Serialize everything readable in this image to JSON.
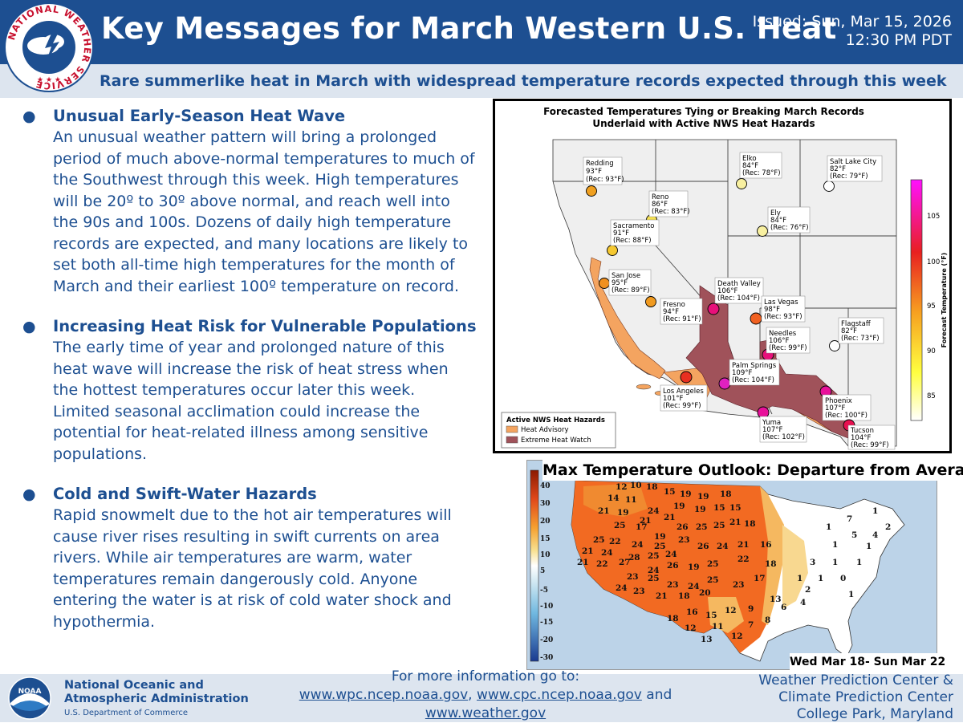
{
  "header": {
    "title": "Key Messages for March Western U.S. Heat",
    "issued_line1": "Issued: Sun, Mar 15, 2026",
    "issued_line2": "12:30 PM PDT",
    "subtitle": "Rare summerlike heat in March with widespread temperature records expected through this week",
    "logo_text": "NATIONAL WEATHER SERVICE"
  },
  "messages": [
    {
      "title": "Unusual Early-Season Heat Wave",
      "body": "An unusual weather pattern will bring a prolonged period of much above-normal temperatures to much of the Southwest through this week. High temperatures will be 20º to 30º above normal, and reach well into the 90s and 100s. Dozens of daily high temperature records are expected, and many locations are likely to set both all-time high temperatures for the month of March and their earliest 100º temperature on record."
    },
    {
      "title": "Increasing Heat Risk for Vulnerable Populations",
      "body": "The early time of year and prolonged nature of this heat wave will increase the risk of heat stress when the hottest temperatures occur later this week. Limited seasonal acclimation could increase the potential for heat-related illness among sensitive populations."
    },
    {
      "title": "Cold and Swift-Water Hazards",
      "body": "Rapid snowmelt due to the hot air temperatures will cause river rises resulting in swift currents on area rivers. While air temperatures are warm, water temperatures remain dangerously cold. Anyone entering the water is at risk of cold water shock and hypothermia."
    }
  ],
  "record_map": {
    "title_line1": "Forecasted Temperatures Tying or Breaking March Records",
    "title_line2": "Underlaid with Active NWS Heat Hazards",
    "colorbar_label": "Forecast Temperature (°F)",
    "colorbar_ticks": [
      "105",
      "100",
      "95",
      "90",
      "85"
    ],
    "legend_title": "Active NWS Heat Hazards",
    "legend_items": [
      {
        "label": "Heat Advisory",
        "color": "#f4a460"
      },
      {
        "label": "Extreme Heat Watch",
        "color": "#a0525a"
      }
    ],
    "cities": [
      {
        "name": "Redding",
        "temp": "93°F",
        "rec": "(Rec: 93°F)",
        "color": "#f0a020"
      },
      {
        "name": "Reno",
        "temp": "86°F",
        "rec": "(Rec: 83°F)",
        "color": "#f5e050"
      },
      {
        "name": "Sacramento",
        "temp": "91°F",
        "rec": "(Rec: 88°F)",
        "color": "#f5c830"
      },
      {
        "name": "San Jose",
        "temp": "95°F",
        "rec": "(Rec: 89°F)",
        "color": "#f09020"
      },
      {
        "name": "Fresno",
        "temp": "94°F",
        "rec": "(Rec: 91°F)",
        "color": "#f09a20"
      },
      {
        "name": "Los Angeles",
        "temp": "101°F",
        "rec": "(Rec: 99°F)",
        "color": "#e83020"
      },
      {
        "name": "Death Valley",
        "temp": "106°F",
        "rec": "(Rec: 104°F)",
        "color": "#e8107a"
      },
      {
        "name": "Las Vegas",
        "temp": "98°F",
        "rec": "(Rec: 93°F)",
        "color": "#f06020"
      },
      {
        "name": "Needles",
        "temp": "106°F",
        "rec": "(Rec: 99°F)",
        "color": "#e8107a"
      },
      {
        "name": "Palm Springs",
        "temp": "109°F",
        "rec": "(Rec: 104°F)",
        "color": "#e020c0"
      },
      {
        "name": "Yuma",
        "temp": "107°F",
        "rec": "(Rec: 102°F)",
        "color": "#e8109a"
      },
      {
        "name": "Phoenix",
        "temp": "107°F",
        "rec": "(Rec: 100°F)",
        "color": "#e8109a"
      },
      {
        "name": "Tucson",
        "temp": "104°F",
        "rec": "(Rec: 99°F)",
        "color": "#e81050"
      },
      {
        "name": "Elko",
        "temp": "84°F",
        "rec": "(Rec: 78°F)",
        "color": "#f8f0a0"
      },
      {
        "name": "Ely",
        "temp": "84°F",
        "rec": "(Rec: 76°F)",
        "color": "#f8f0a0"
      },
      {
        "name": "Salt Lake City",
        "temp": "82°F",
        "rec": "(Rec: 79°F)",
        "color": "#ffffff"
      },
      {
        "name": "Flagstaff",
        "temp": "82°F",
        "rec": "(Rec: 73°F)",
        "color": "#ffffff"
      }
    ]
  },
  "outlook_map": {
    "title": "Max Temperature Outlook: Departure from Average",
    "period": "Wed Mar 18- Sun Mar 22",
    "scale_ticks": [
      "40",
      "30",
      "20",
      "15",
      "10",
      "5",
      "-5",
      "-10",
      "-15",
      "-20",
      "-30"
    ],
    "values": [
      "12",
      "10",
      "18",
      "15",
      "14",
      "11",
      "19",
      "19",
      "18",
      "21",
      "19",
      "24",
      "19",
      "15",
      "15",
      "21",
      "21",
      "19",
      "25",
      "17",
      "26",
      "25",
      "25",
      "21",
      "18",
      "19",
      "25",
      "22",
      "24",
      "25",
      "23",
      "26",
      "24",
      "21",
      "16",
      "21",
      "24",
      "28",
      "25",
      "24",
      "21",
      "22",
      "27",
      "24",
      "26",
      "19",
      "25",
      "22",
      "18",
      "23",
      "25",
      "23",
      "24",
      "25",
      "23",
      "17",
      "13",
      "24",
      "23",
      "21",
      "18",
      "20",
      "18",
      "16",
      "15",
      "12",
      "12",
      "13",
      "11",
      "12",
      "9",
      "7",
      "8",
      "6",
      "4",
      "2",
      "3",
      "1",
      "0",
      "1",
      "1",
      "1",
      "4",
      "5",
      "1",
      "1",
      "7",
      "1",
      "2",
      "1",
      "1"
    ]
  },
  "footer": {
    "noaa_name_line1": "National Oceanic and",
    "noaa_name_line2": "Atmospheric Administration",
    "noaa_dept": "U.S. Department of Commerce",
    "more_info": "For more information go to:",
    "link1": "www.wpc.ncep.noaa.gov",
    "link2": "www.cpc.ncep.noaa.gov",
    "and": "and",
    "link3": "www.weather.gov",
    "wpc_line1": "Weather Prediction Center &",
    "wpc_line2": "Climate Prediction Center",
    "wpc_line3": "College Park, Maryland"
  }
}
